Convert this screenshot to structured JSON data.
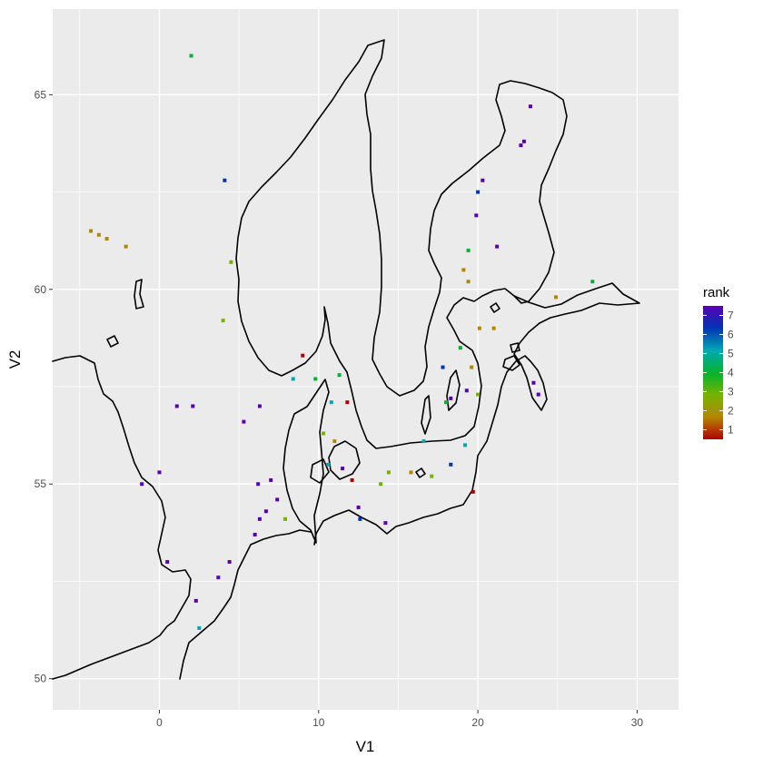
{
  "chart_data": {
    "type": "scatter",
    "title": "",
    "xlabel": "V1",
    "ylabel": "V2",
    "xlim": [
      -6.7,
      32.6
    ],
    "ylim": [
      49.2,
      67.2
    ],
    "x_ticks": [
      0,
      10,
      20,
      30
    ],
    "y_ticks": [
      50,
      55,
      60,
      65
    ],
    "x_tick_labels": [
      "0",
      "10",
      "20",
      "30"
    ],
    "y_tick_labels": [
      "50",
      "55",
      "60",
      "65"
    ],
    "grid": true,
    "legend": {
      "title": "rank",
      "position": "right",
      "labels": [
        "7",
        "6",
        "5",
        "4",
        "3",
        "2",
        "1"
      ],
      "range": [
        1,
        7
      ]
    },
    "colors": {
      "panel_bg": "#ebebeb",
      "grid": "#ffffff",
      "coastline": "#000000",
      "rank_1": "#b30000",
      "rank_2": "#b38600",
      "rank_3": "#75b300",
      "rank_4": "#00b330",
      "rank_5": "#00a8b3",
      "rank_6": "#0034b3",
      "rank_7": "#5a00b3"
    },
    "series": [
      {
        "x": [
          2.0,
          4.1,
          -4.3,
          -3.8,
          -3.3,
          -2.1,
          4.5,
          4.0,
          9.0,
          8.4,
          9.8,
          11.3,
          10.8,
          11.8,
          1.1,
          2.1,
          6.3,
          5.3,
          0.0,
          -1.1,
          6.2,
          7.0,
          7.4,
          6.7,
          6.3,
          7.9,
          6.0,
          3.7,
          4.4,
          0.5,
          2.3,
          2.5,
          10.3,
          10.6,
          11.0,
          11.5,
          12.1,
          12.5,
          12.6,
          13.9,
          14.2,
          14.4,
          15.8,
          16.6,
          17.1,
          18.3,
          19.2,
          19.7,
          19.3,
          18.9,
          17.8,
          18.0,
          18.3,
          19.6,
          20.0,
          20.1,
          21.0,
          19.1,
          19.4,
          19.4,
          20.0,
          19.9,
          20.3,
          21.2,
          22.9,
          22.7,
          23.3,
          24.9,
          27.2,
          23.5,
          23.8
        ],
        "y": [
          66.0,
          62.8,
          61.5,
          61.4,
          61.3,
          61.1,
          60.7,
          59.2,
          58.3,
          57.7,
          57.7,
          57.8,
          57.1,
          57.1,
          57.0,
          57.0,
          57.0,
          56.6,
          55.3,
          55.0,
          55.0,
          55.1,
          54.6,
          54.3,
          54.1,
          54.1,
          53.7,
          52.6,
          53.0,
          53.0,
          52.0,
          51.3,
          56.3,
          55.5,
          56.1,
          55.4,
          55.1,
          54.4,
          54.1,
          55.0,
          54.0,
          55.3,
          55.3,
          56.1,
          55.2,
          55.5,
          56.0,
          54.8,
          57.4,
          58.5,
          58.0,
          57.1,
          57.2,
          58.0,
          57.3,
          59.0,
          59.0,
          60.5,
          60.2,
          61.0,
          62.5,
          61.9,
          62.8,
          61.1,
          63.8,
          63.7,
          64.7,
          59.8,
          60.2,
          57.6,
          57.3
        ],
        "rank": [
          4,
          6,
          2,
          2,
          2,
          2,
          3,
          3,
          1,
          5,
          4,
          4,
          5,
          1,
          7,
          7,
          7,
          7,
          7,
          7,
          7,
          7,
          7,
          7,
          7,
          3,
          7,
          7,
          7,
          7,
          7,
          5,
          3,
          5,
          2,
          7,
          1,
          7,
          6,
          3,
          7,
          3,
          2,
          5,
          3,
          6,
          5,
          1,
          7,
          4,
          6,
          4,
          7,
          2,
          3,
          2,
          2,
          2,
          2,
          4,
          6,
          7,
          7,
          7,
          7,
          7,
          7,
          2,
          4,
          7,
          7
        ]
      }
    ]
  }
}
